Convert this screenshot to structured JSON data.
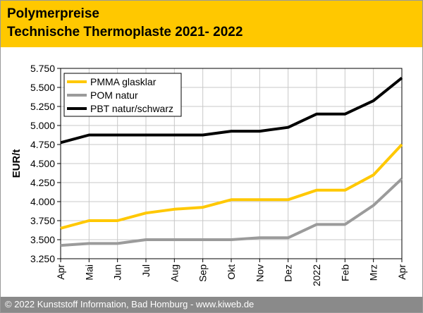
{
  "header": {
    "title": "Polymerpreise",
    "subtitle": "Technische Thermoplaste 2021- 2022"
  },
  "footer": {
    "text": "© 2022 Kunststoff Information, Bad Homburg - www.kiweb.de"
  },
  "colors": {
    "header_bg": "#ffc800",
    "footer_bg": "#8a8a8a"
  },
  "chart_data": {
    "type": "line",
    "ylabel": "EUR/t",
    "xlabel": "",
    "ylim": [
      3.25,
      5.75
    ],
    "y_ticks": [
      "3.250",
      "3.500",
      "3.750",
      "4.000",
      "4.250",
      "4.500",
      "4.750",
      "5.000",
      "5.250",
      "5.500",
      "5.750"
    ],
    "categories": [
      "Apr",
      "Mai",
      "Jun",
      "Jul",
      "Aug",
      "Sep",
      "Okt",
      "Nov",
      "Dez",
      "2022",
      "Feb",
      "Mrz",
      "Apr"
    ],
    "grid": true,
    "legend": "top-left",
    "series": [
      {
        "name": "PMMA glasklar",
        "color": "#ffc800",
        "values": [
          3.65,
          3.75,
          3.75,
          3.85,
          3.9,
          3.925,
          4.025,
          4.025,
          4.025,
          4.15,
          4.15,
          4.35,
          4.75
        ]
      },
      {
        "name": "POM natur",
        "color": "#9b9b9b",
        "values": [
          3.425,
          3.45,
          3.45,
          3.5,
          3.5,
          3.5,
          3.5,
          3.525,
          3.525,
          3.7,
          3.7,
          3.95,
          4.3
        ]
      },
      {
        "name": "PBT natur/schwarz",
        "color": "#000000",
        "values": [
          4.775,
          4.875,
          4.875,
          4.875,
          4.875,
          4.875,
          4.925,
          4.925,
          4.975,
          5.15,
          5.15,
          5.325,
          5.625
        ]
      }
    ]
  }
}
